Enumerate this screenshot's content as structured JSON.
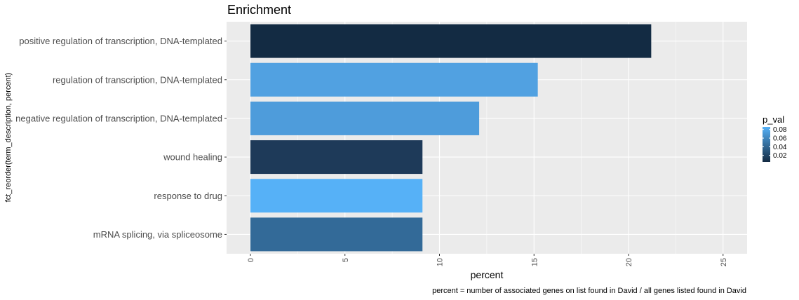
{
  "chart_data": {
    "type": "bar",
    "orientation": "horizontal",
    "title": "Enrichment",
    "xlabel": "percent",
    "ylabel": "fct_reorder(term_description, percent)",
    "caption": "percent = number of associated genes on list found in David / all genes listed found in David",
    "xlim": [
      0,
      26.3
    ],
    "xticks": [
      0,
      5,
      10,
      15,
      20,
      25
    ],
    "xtick_labels": [
      "0",
      "5",
      "10",
      "15",
      "20",
      "25"
    ],
    "grid": true,
    "categories": [
      "positive regulation of transcription, DNA-templated",
      "regulation of transcription, DNA-templated",
      "negative regulation of transcription, DNA-templated",
      "wound healing",
      "response to drug",
      "mRNA splicing, via spliceosome"
    ],
    "values": [
      21.2,
      15.2,
      12.1,
      9.1,
      9.1,
      9.1
    ],
    "p_val": [
      0.005,
      0.078,
      0.075,
      0.012,
      0.086,
      0.045
    ],
    "colors": [
      "#132B43",
      "#51A1E1",
      "#4E9CDB",
      "#1E3A59",
      "#56B1F7",
      "#336A98"
    ],
    "legend": {
      "title": "p_val",
      "placement": "right",
      "labels": [
        "0.08",
        "0.06",
        "0.04",
        "0.02"
      ],
      "ticks": [
        0.08,
        0.06,
        0.04,
        0.02
      ],
      "range": [
        0.005,
        0.086
      ],
      "low_color": "#132B43",
      "high_color": "#56B1F7"
    },
    "panel_background": "#EBEBEB",
    "grid_color": "#FFFFFF"
  }
}
